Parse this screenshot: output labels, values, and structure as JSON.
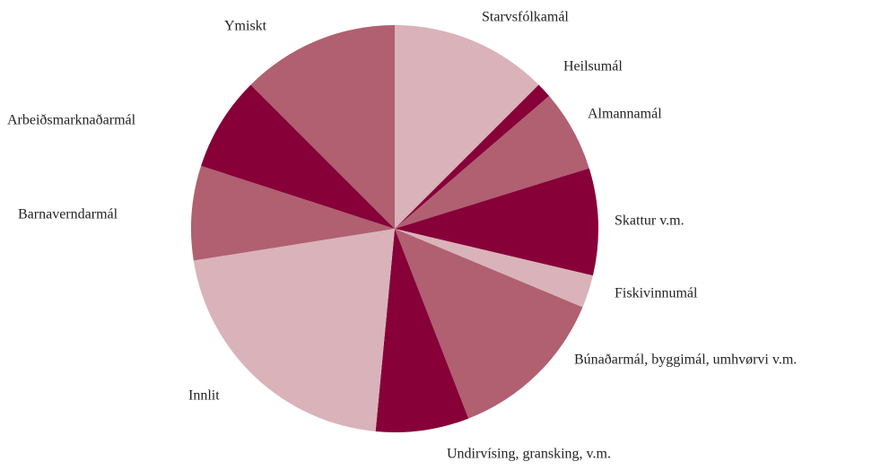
{
  "chart_data": {
    "type": "pie",
    "categories": [
      "Starvsfólkamál",
      "Heilsumál",
      "Almannamál",
      "Skattur v.m.",
      "Fiskivinnumál",
      "Búnaðarmál, byggimál, umhvørvi v.m.",
      "Undirvísing, gransking, v.m.",
      "Innlit",
      "Barnaverndarmál",
      "Arbeiðsmarknaðarmál",
      "Ymiskt"
    ],
    "values": [
      12.5,
      1.2,
      6.5,
      8.5,
      2.6,
      12.8,
      7.4,
      21,
      7.5,
      7.5,
      12.5
    ],
    "colors": [
      "#d9b3b9",
      "#870038",
      "#b06070",
      "#870038",
      "#d9b3b9",
      "#b06070",
      "#870038",
      "#d9b3b9",
      "#b06070",
      "#870038",
      "#b06070"
    ]
  }
}
